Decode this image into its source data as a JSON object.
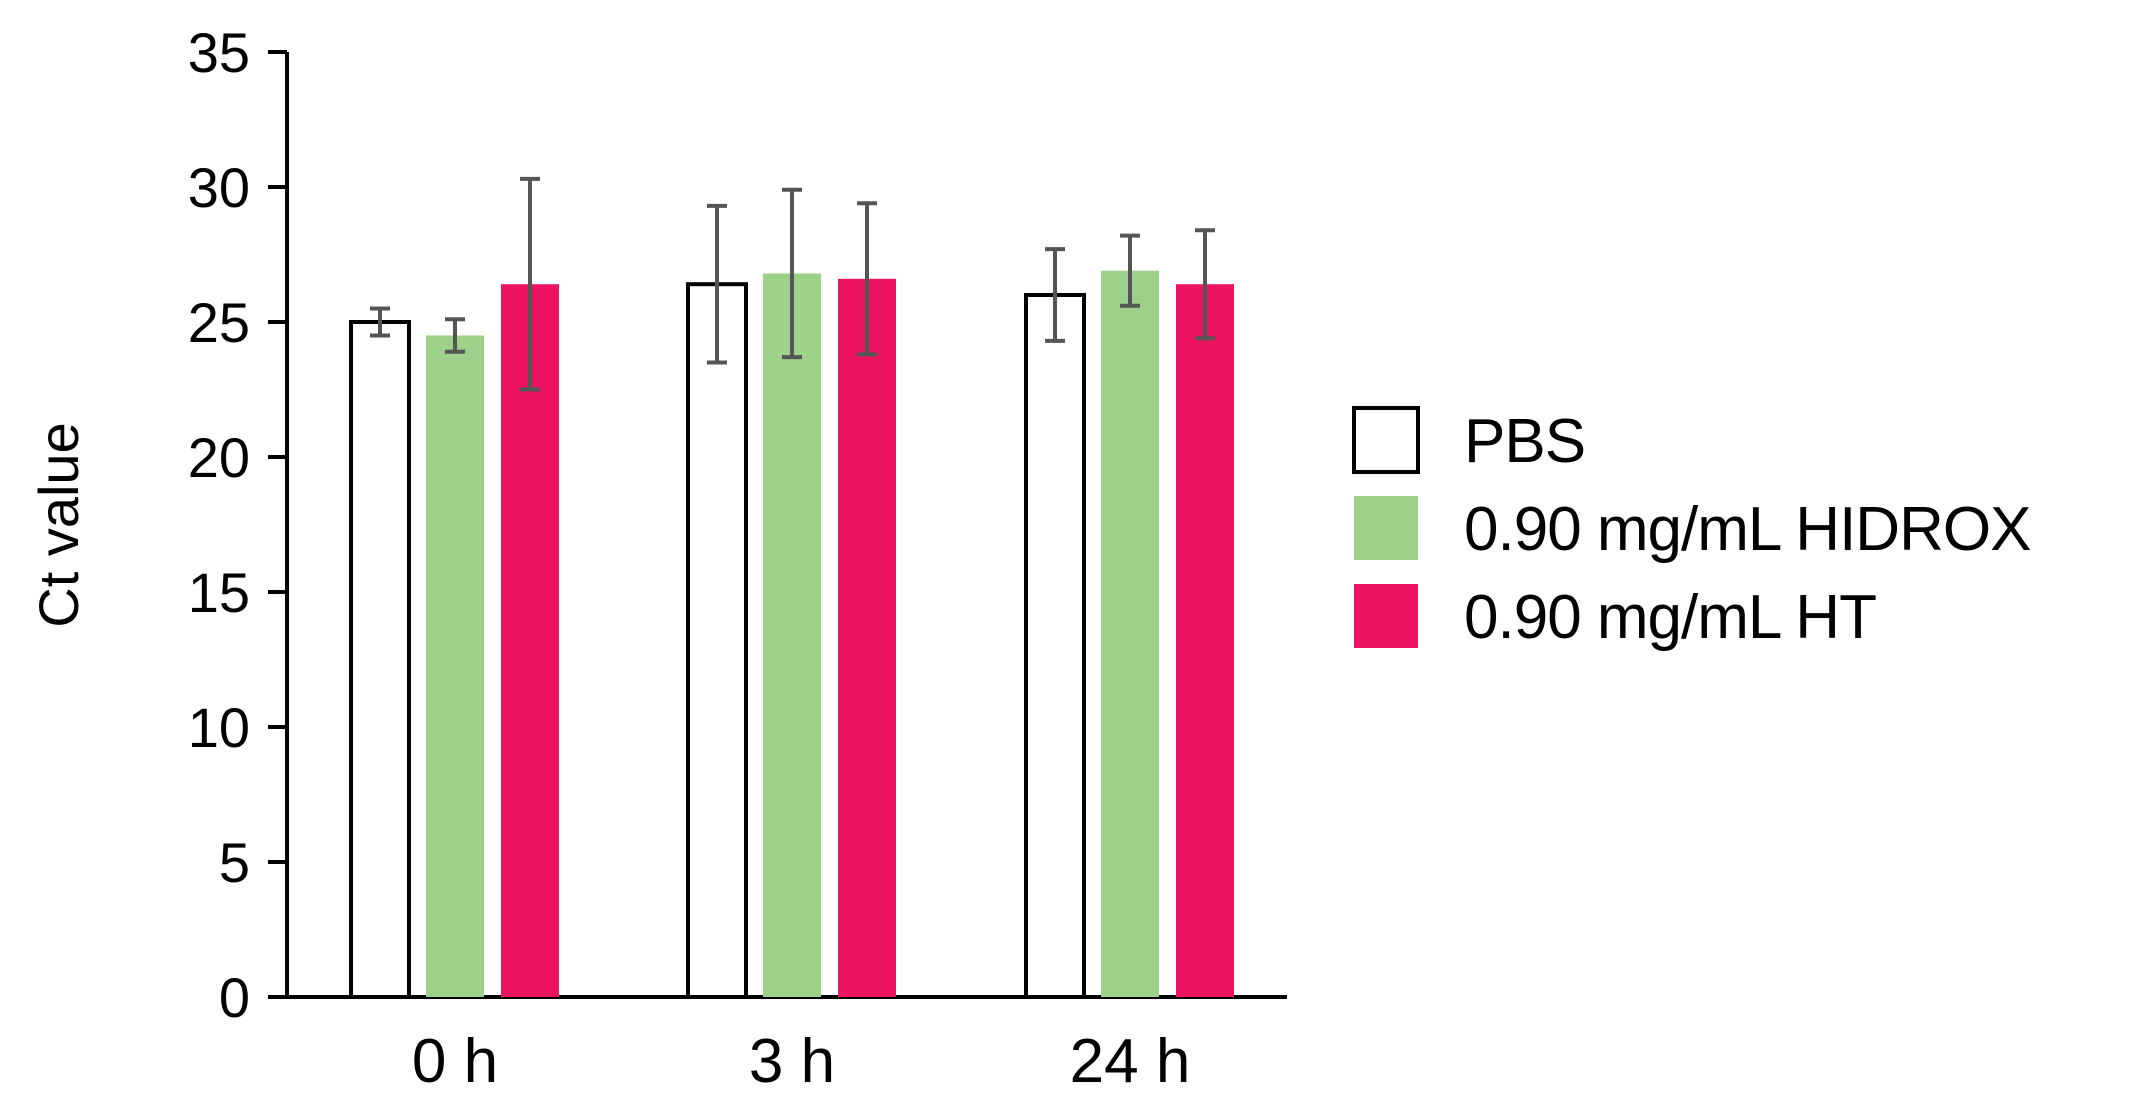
{
  "chart_data": {
    "type": "bar",
    "title": "",
    "xlabel": "",
    "ylabel": "Ct value",
    "ylim": [
      0,
      35
    ],
    "yticks": [
      0,
      5,
      10,
      15,
      20,
      25,
      30,
      35
    ],
    "categories": [
      "0 h",
      "3 h",
      "24 h"
    ],
    "grid": false,
    "legend_position": "right",
    "series": [
      {
        "name": "PBS",
        "color": "#ffffff",
        "stroke": "#000000",
        "values": [
          25.0,
          26.4,
          26.0
        ],
        "errors": [
          0.5,
          2.9,
          1.7
        ]
      },
      {
        "name": "0.90 mg/mL HIDROX",
        "color": "#9dd18a",
        "stroke": "none",
        "values": [
          24.5,
          26.8,
          26.9
        ],
        "errors": [
          0.6,
          3.1,
          1.3
        ]
      },
      {
        "name": "0.90 mg/mL HT",
        "color": "#ec1460",
        "stroke": "none",
        "values": [
          26.4,
          26.6,
          26.4
        ],
        "errors": [
          3.9,
          2.8,
          2.0
        ]
      }
    ]
  }
}
